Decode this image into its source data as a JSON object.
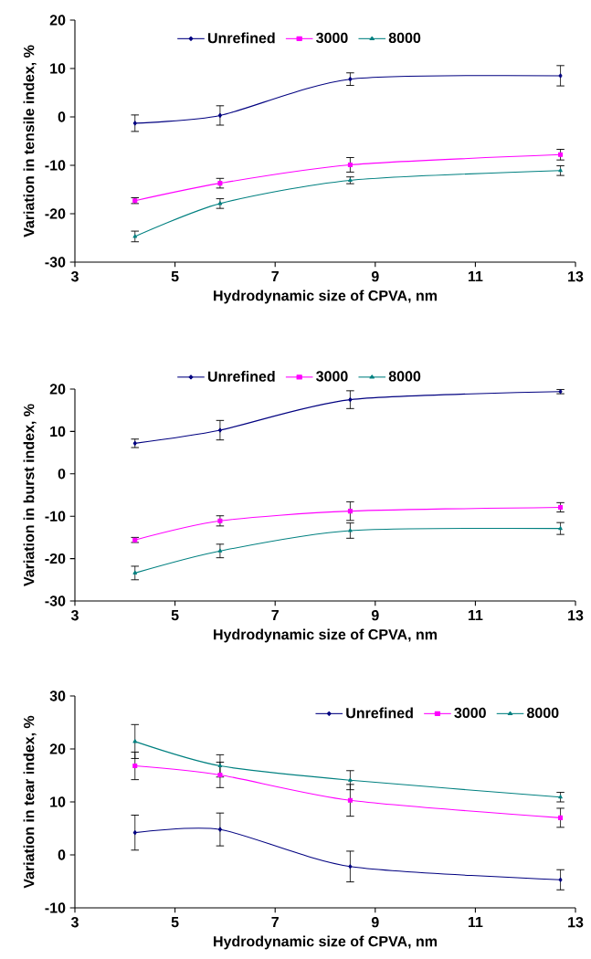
{
  "chart_data": [
    {
      "type": "line",
      "xlabel": "Hydrodynamic size of CPVA, nm",
      "ylabel": "Variation in tensile index, %",
      "x": [
        4.2,
        5.9,
        8.5,
        12.7
      ],
      "xlim": [
        3,
        13
      ],
      "xticks": [
        3,
        5,
        7,
        9,
        11,
        13
      ],
      "ylim": [
        -30,
        20
      ],
      "yticks": [
        -30,
        -20,
        -10,
        0,
        10,
        20
      ],
      "legend": "top",
      "line_style": "solid",
      "series": [
        {
          "name": "Unrefined",
          "color": "#000080",
          "marker": "diamond",
          "values": [
            -1.3,
            0.3,
            7.8,
            8.5
          ],
          "errors": [
            1.7,
            2.0,
            1.3,
            2.1
          ]
        },
        {
          "name": "3000",
          "color": "#ff00ff",
          "marker": "square",
          "values": [
            -17.3,
            -13.7,
            -9.9,
            -7.8
          ],
          "errors": [
            0.6,
            1.0,
            1.5,
            1.1
          ]
        },
        {
          "name": "8000",
          "color": "#008080",
          "marker": "triangle",
          "values": [
            -24.7,
            -17.9,
            -13.1,
            -11.1
          ],
          "errors": [
            1.1,
            1.0,
            0.7,
            1.0
          ]
        }
      ]
    },
    {
      "type": "line",
      "xlabel": "Hydrodynamic size of CPVA, nm",
      "ylabel": "Variation in burst index, %",
      "x": [
        4.2,
        5.9,
        8.5,
        12.7
      ],
      "xlim": [
        3,
        13
      ],
      "xticks": [
        3,
        5,
        7,
        9,
        11,
        13
      ],
      "ylim": [
        -30,
        20
      ],
      "yticks": [
        -30,
        -20,
        -10,
        0,
        10,
        20
      ],
      "legend": "top",
      "line_style": "solid",
      "series": [
        {
          "name": "Unrefined",
          "color": "#000080",
          "marker": "diamond",
          "values": [
            7.2,
            10.3,
            17.5,
            19.4
          ],
          "errors": [
            1.0,
            2.3,
            2.1,
            0.5
          ]
        },
        {
          "name": "3000",
          "color": "#ff00ff",
          "marker": "square",
          "values": [
            -15.6,
            -11.1,
            -8.8,
            -7.9
          ],
          "errors": [
            0.6,
            1.2,
            2.2,
            1.1
          ]
        },
        {
          "name": "8000",
          "color": "#008080",
          "marker": "triangle",
          "values": [
            -23.4,
            -18.2,
            -13.4,
            -12.9
          ],
          "errors": [
            1.6,
            1.6,
            1.8,
            1.4
          ]
        }
      ]
    },
    {
      "type": "line",
      "xlabel": "Hydrodynamic size of CPVA, nm",
      "ylabel": "Variation in tear index, %",
      "x": [
        4.2,
        5.9,
        8.5,
        12.7
      ],
      "xlim": [
        3,
        13
      ],
      "xticks": [
        3,
        5,
        7,
        9,
        11,
        13
      ],
      "ylim": [
        -10,
        30
      ],
      "yticks": [
        -10,
        0,
        10,
        20,
        30
      ],
      "legend": "top right",
      "line_style": "solid",
      "series": [
        {
          "name": "Unrefined",
          "color": "#000080",
          "marker": "diamond",
          "values": [
            4.2,
            4.8,
            -2.2,
            -4.7
          ],
          "errors": [
            3.3,
            3.1,
            2.9,
            1.9
          ]
        },
        {
          "name": "3000",
          "color": "#ff00ff",
          "marker": "square",
          "values": [
            16.8,
            15.1,
            10.3,
            7.0
          ],
          "errors": [
            2.6,
            2.4,
            3.0,
            1.8
          ]
        },
        {
          "name": "8000",
          "color": "#008080",
          "marker": "triangle",
          "values": [
            21.4,
            16.8,
            14.1,
            10.9
          ],
          "errors": [
            3.2,
            2.1,
            1.8,
            0.9
          ]
        }
      ]
    }
  ]
}
